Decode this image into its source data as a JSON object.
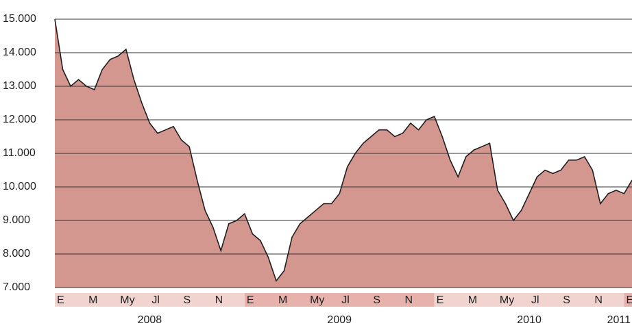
{
  "chart_data": {
    "type": "area",
    "categories": [
      "E",
      null,
      null,
      null,
      "M",
      null,
      null,
      null,
      "My",
      null,
      null,
      null,
      "Jl",
      null,
      null,
      null,
      "S",
      null,
      null,
      null,
      "N",
      null,
      null,
      null,
      "E",
      null,
      null,
      null,
      "M",
      null,
      null,
      null,
      "My",
      null,
      null,
      null,
      "Jl",
      null,
      null,
      null,
      "S",
      null,
      null,
      null,
      "N",
      null,
      null,
      null,
      "E",
      null,
      null,
      null,
      "M",
      null,
      null,
      null,
      "My",
      null,
      null,
      null,
      "Jl",
      null,
      null,
      null,
      "S",
      null,
      null,
      null,
      "N",
      null,
      null,
      null,
      "E",
      null
    ],
    "year_labels": [
      "2008",
      "2009",
      "2010",
      "2011"
    ],
    "values": [
      15000,
      13500,
      13000,
      13200,
      13000,
      12900,
      13500,
      13800,
      13900,
      14100,
      13200,
      12500,
      11900,
      11600,
      11700,
      11800,
      11400,
      11200,
      10200,
      9300,
      8800,
      8100,
      8900,
      9000,
      9200,
      8600,
      8400,
      7900,
      7200,
      7500,
      8500,
      8900,
      9100,
      9300,
      9500,
      9500,
      9800,
      10600,
      11000,
      11300,
      11500,
      11700,
      11700,
      11500,
      11600,
      11900,
      11700,
      12000,
      12100,
      11500,
      10800,
      10300,
      10900,
      11100,
      11200,
      11300,
      9900,
      9500,
      9000,
      9300,
      9800,
      10300,
      10500,
      10400,
      10500,
      10800,
      10800,
      10900,
      10500,
      9500,
      9800,
      9900,
      9800,
      10200
    ],
    "color": "#d4978f",
    "line_color": "#1e1e1e",
    "ylim": [
      7000,
      15000
    ],
    "yticks": [
      {
        "value": 7000,
        "label": "7.000"
      },
      {
        "value": 8000,
        "label": "8.000"
      },
      {
        "value": 9000,
        "label": "9.000"
      },
      {
        "value": 10000,
        "label": "10.000"
      },
      {
        "value": 11000,
        "label": "11.000"
      },
      {
        "value": 12000,
        "label": "12.000"
      },
      {
        "value": 13000,
        "label": "13.000"
      },
      {
        "value": 14000,
        "label": "14.000"
      },
      {
        "value": 15000,
        "label": "15.000"
      }
    ],
    "grid": true
  }
}
